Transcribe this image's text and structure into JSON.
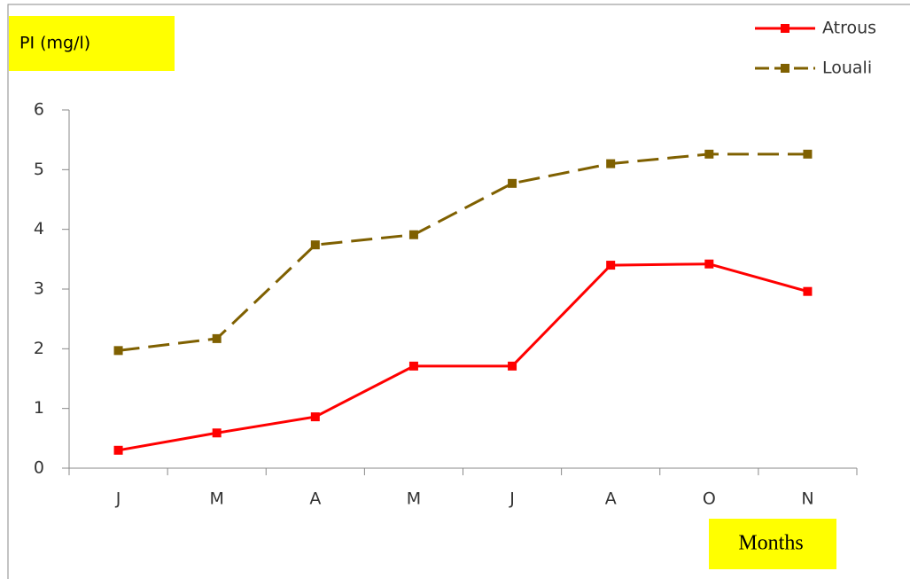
{
  "chart_data": {
    "type": "line",
    "y_label": "PI (mg/l)",
    "x_label": "Months",
    "categories": [
      "J",
      "M",
      "A",
      "M",
      "J",
      "A",
      "O",
      "N"
    ],
    "series": [
      {
        "name": "Atrous",
        "color": "#ff0000",
        "dashed": false,
        "values": [
          0.3,
          0.59,
          0.86,
          1.71,
          1.71,
          3.4,
          3.42,
          2.96
        ]
      },
      {
        "name": "Louali",
        "color": "#7f6000",
        "dashed": true,
        "values": [
          1.97,
          2.17,
          3.74,
          3.91,
          4.77,
          5.1,
          5.26,
          5.26
        ]
      }
    ],
    "ylim": [
      0,
      6
    ],
    "yticks": [
      0,
      1,
      2,
      3,
      4,
      5,
      6
    ],
    "grid": false,
    "legend": "top-right"
  }
}
